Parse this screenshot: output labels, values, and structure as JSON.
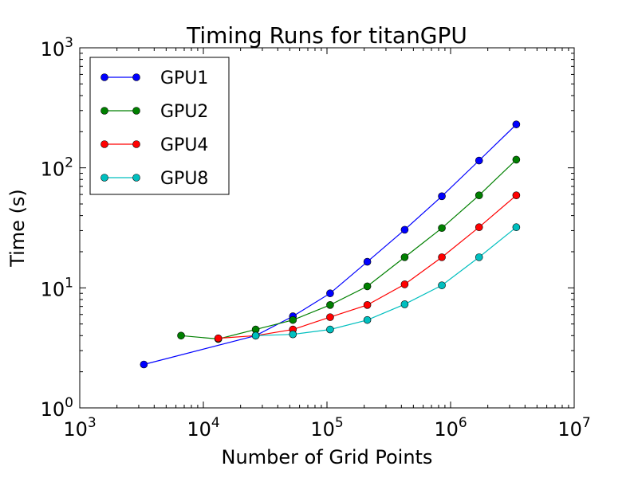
{
  "chart_data": {
    "type": "line",
    "title": "Timing Runs for titanGPU",
    "xlabel": "Number of Grid Points",
    "ylabel": "Time (s)",
    "xscale": "log",
    "yscale": "log",
    "xlim": [
      1000,
      10000000
    ],
    "ylim": [
      1,
      1000
    ],
    "x_ticks": [
      {
        "base": "10",
        "exp": "3",
        "value": 1000
      },
      {
        "base": "10",
        "exp": "4",
        "value": 10000
      },
      {
        "base": "10",
        "exp": "5",
        "value": 100000
      },
      {
        "base": "10",
        "exp": "6",
        "value": 1000000
      },
      {
        "base": "10",
        "exp": "7",
        "value": 10000000
      }
    ],
    "y_ticks": [
      {
        "base": "10",
        "exp": "0",
        "value": 1
      },
      {
        "base": "10",
        "exp": "1",
        "value": 10
      },
      {
        "base": "10",
        "exp": "2",
        "value": 100
      },
      {
        "base": "10",
        "exp": "3",
        "value": 1000
      }
    ],
    "grid": false,
    "legend_position": "top-left",
    "series": [
      {
        "name": "GPU1",
        "color": "#0000ff",
        "x": [
          3300,
          26500,
          53000,
          106000,
          212000,
          425000,
          850000,
          1700000,
          3400000
        ],
        "y": [
          2.3,
          4.0,
          5.8,
          9.0,
          16.5,
          30.5,
          58,
          115,
          230
        ]
      },
      {
        "name": "GPU2",
        "color": "#008000",
        "x": [
          6600,
          13200,
          26500,
          53000,
          106000,
          212000,
          425000,
          850000,
          1700000,
          3400000
        ],
        "y": [
          4.0,
          3.75,
          4.5,
          5.4,
          7.2,
          10.3,
          18.0,
          31.5,
          59,
          117
        ]
      },
      {
        "name": "GPU4",
        "color": "#ff0000",
        "x": [
          13200,
          26500,
          53000,
          106000,
          212000,
          425000,
          850000,
          1700000,
          3400000
        ],
        "y": [
          3.8,
          4.0,
          4.5,
          5.7,
          7.2,
          10.7,
          18.0,
          32.0,
          59
        ]
      },
      {
        "name": "GPU8",
        "color": "#00bfbf",
        "x": [
          26500,
          53000,
          106000,
          212000,
          425000,
          850000,
          1700000,
          3400000
        ],
        "y": [
          4.0,
          4.1,
          4.5,
          5.4,
          7.3,
          10.5,
          18.0,
          32.0
        ]
      }
    ]
  }
}
